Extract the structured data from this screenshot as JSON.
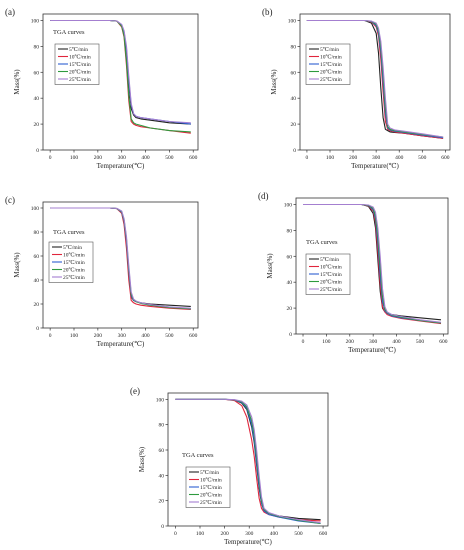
{
  "figure": {
    "panels": [
      "(a)",
      "(b)",
      "(c)",
      "(d)",
      "(e)"
    ]
  },
  "chart_data": [
    {
      "panel": "(a)",
      "type": "line",
      "legend_title": "TGA  curves",
      "legend_position": "center-left",
      "xlabel": "Temperature(℃)",
      "ylabel": "Mass(%)",
      "xlim": [
        -30,
        620
      ],
      "ylim": [
        0,
        105
      ],
      "xticks": [
        0,
        100,
        200,
        300,
        400,
        500,
        600
      ],
      "yticks": [
        0,
        20,
        40,
        60,
        80,
        100
      ],
      "x": [
        0,
        250,
        280,
        300,
        310,
        320,
        330,
        340,
        350,
        360,
        380,
        420,
        500,
        590
      ],
      "series": [
        {
          "name": "5℃/min",
          "color": "#222222",
          "values": [
            100,
            100,
            99.5,
            96,
            90,
            75,
            50,
            32,
            27,
            25,
            24,
            23,
            21,
            20
          ]
        },
        {
          "name": "10℃/min",
          "color": "#e0263c",
          "values": [
            100,
            100,
            99.5,
            95,
            87,
            65,
            38,
            22,
            20,
            19,
            18,
            17,
            15,
            13
          ]
        },
        {
          "name": "15℃/min",
          "color": "#2f5fd0",
          "values": [
            100,
            100,
            99.6,
            96.5,
            91,
            78,
            54,
            35,
            28,
            26,
            25,
            24,
            22,
            20
          ]
        },
        {
          "name": "20℃/min",
          "color": "#2e9a3e",
          "values": [
            100,
            100,
            99.5,
            95.5,
            88,
            68,
            42,
            24,
            21,
            20,
            19,
            17,
            15,
            14
          ]
        },
        {
          "name": "25℃/min",
          "color": "#a47fd0",
          "values": [
            100,
            100,
            99.6,
            97,
            92,
            80,
            57,
            36,
            28,
            26,
            25,
            24,
            22,
            21
          ]
        }
      ]
    },
    {
      "panel": "(b)",
      "type": "line",
      "legend_title": "",
      "legend_position": "center-left",
      "xlabel": "Temperature(℃)",
      "ylabel": "Mass(%)",
      "xlim": [
        -30,
        620
      ],
      "ylim": [
        0,
        105
      ],
      "xticks": [
        0,
        100,
        200,
        300,
        400,
        500,
        600
      ],
      "yticks": [
        0,
        20,
        40,
        60,
        80,
        100
      ],
      "x": [
        0,
        250,
        280,
        300,
        310,
        320,
        330,
        340,
        350,
        360,
        380,
        420,
        500,
        590
      ],
      "series": [
        {
          "name": "5℃/min",
          "color": "#222222",
          "values": [
            100,
            100,
            98,
            90,
            75,
            48,
            25,
            16,
            15,
            14,
            13.5,
            13,
            11,
            9
          ]
        },
        {
          "name": "10℃/min",
          "color": "#e0263c",
          "values": [
            100,
            100,
            99,
            95,
            88,
            70,
            45,
            22,
            16,
            15,
            14,
            13,
            11,
            9
          ]
        },
        {
          "name": "15℃/min",
          "color": "#2f5fd0",
          "values": [
            100,
            100,
            99.2,
            96,
            90,
            76,
            52,
            28,
            17,
            15.5,
            14.5,
            13.5,
            11.5,
            9.5
          ]
        },
        {
          "name": "20℃/min",
          "color": "#2e9a3e",
          "values": [
            100,
            100,
            99.4,
            97,
            92,
            80,
            58,
            33,
            18,
            16,
            15,
            14,
            12,
            10
          ]
        },
        {
          "name": "25℃/min",
          "color": "#a47fd0",
          "values": [
            100,
            100,
            99.5,
            98,
            94,
            84,
            64,
            40,
            20,
            17,
            15.5,
            14.5,
            12.5,
            10
          ]
        }
      ]
    },
    {
      "panel": "(c)",
      "type": "line",
      "legend_title": "TGA  curves",
      "legend_position": "center-left",
      "xlabel": "Temperature(℃)",
      "ylabel": "Mass(%)",
      "xlim": [
        -30,
        620
      ],
      "ylim": [
        0,
        105
      ],
      "xticks": [
        0,
        100,
        200,
        300,
        400,
        500,
        600
      ],
      "yticks": [
        0,
        20,
        40,
        60,
        80,
        100
      ],
      "x": [
        0,
        250,
        280,
        300,
        310,
        320,
        330,
        340,
        350,
        360,
        380,
        420,
        500,
        590
      ],
      "series": [
        {
          "name": "5℃/min",
          "color": "#222222",
          "values": [
            100,
            100,
            99.5,
            96,
            88,
            70,
            45,
            26,
            23,
            22,
            21,
            20,
            19,
            18
          ]
        },
        {
          "name": "10℃/min",
          "color": "#e0263c",
          "values": [
            100,
            100,
            99.5,
            95.5,
            86,
            66,
            40,
            23,
            21,
            20,
            19,
            18,
            16.5,
            15.5
          ]
        },
        {
          "name": "15℃/min",
          "color": "#2f5fd0",
          "values": [
            100,
            100,
            99.6,
            96.5,
            89,
            72,
            47,
            27,
            23,
            22,
            21,
            19,
            17.5,
            16
          ]
        },
        {
          "name": "20℃/min",
          "color": "#2e9a3e",
          "values": [
            100,
            100,
            99.6,
            97,
            90,
            74,
            49,
            28,
            23.5,
            22,
            20.5,
            19,
            17,
            16
          ]
        },
        {
          "name": "25℃/min",
          "color": "#a47fd0",
          "values": [
            100,
            100,
            99.7,
            97.5,
            91,
            76,
            52,
            30,
            24,
            22.5,
            21,
            19.5,
            17.5,
            16.5
          ]
        }
      ]
    },
    {
      "panel": "(d)",
      "type": "line",
      "legend_title": "TGA  curves",
      "legend_position": "center-left",
      "xlabel": "Temperature(℃)",
      "ylabel": "Mass(%)",
      "xlim": [
        -30,
        620
      ],
      "ylim": [
        0,
        105
      ],
      "xticks": [
        0,
        100,
        200,
        300,
        400,
        500,
        600
      ],
      "yticks": [
        0,
        20,
        40,
        60,
        80,
        100
      ],
      "x": [
        0,
        250,
        280,
        300,
        310,
        320,
        330,
        340,
        350,
        360,
        380,
        420,
        500,
        590
      ],
      "series": [
        {
          "name": "5℃/min",
          "color": "#222222",
          "values": [
            100,
            100,
            98.5,
            93,
            82,
            58,
            33,
            20,
            17,
            16,
            15,
            14,
            12.5,
            11
          ]
        },
        {
          "name": "10℃/min",
          "color": "#e0263c",
          "values": [
            100,
            100,
            99,
            95,
            86,
            64,
            38,
            21,
            17,
            15,
            13.5,
            12,
            10,
            8
          ]
        },
        {
          "name": "15℃/min",
          "color": "#2f5fd0",
          "values": [
            100,
            100,
            99.2,
            96,
            89,
            71,
            45,
            25,
            18,
            16,
            14,
            12.5,
            10.5,
            8.5
          ]
        },
        {
          "name": "20℃/min",
          "color": "#2e9a3e",
          "values": [
            100,
            100,
            99.4,
            97,
            91,
            76,
            52,
            29,
            19,
            16.5,
            14.5,
            13,
            10.5,
            8.5
          ]
        },
        {
          "name": "25℃/min",
          "color": "#a47fd0",
          "values": [
            100,
            100,
            99.6,
            98,
            94,
            82,
            60,
            35,
            21,
            17,
            15,
            13.5,
            11,
            9
          ]
        }
      ]
    },
    {
      "panel": "(e)",
      "type": "line",
      "legend_title": "TGA  curves",
      "legend_position": "center-left",
      "xlabel": "Temperature(℃)",
      "ylabel": "Mass(%)",
      "xlim": [
        -30,
        620
      ],
      "ylim": [
        0,
        105
      ],
      "xticks": [
        0,
        100,
        200,
        300,
        400,
        500,
        600
      ],
      "yticks": [
        0,
        20,
        40,
        60,
        80,
        100
      ],
      "x": [
        0,
        200,
        240,
        270,
        290,
        310,
        320,
        330,
        340,
        350,
        360,
        380,
        420,
        500,
        590
      ],
      "series": [
        {
          "name": "5℃/min",
          "color": "#222222",
          "values": [
            100,
            100,
            99.5,
            97,
            92,
            78,
            66,
            48,
            30,
            18,
            12,
            10,
            8,
            6,
            5
          ]
        },
        {
          "name": "10℃/min",
          "color": "#e0263c",
          "values": [
            100,
            100,
            99,
            95,
            86,
            68,
            55,
            38,
            22,
            14,
            11,
            9,
            7,
            5,
            4
          ]
        },
        {
          "name": "15℃/min",
          "color": "#2f5fd0",
          "values": [
            100,
            100,
            99.5,
            97.5,
            93,
            80,
            68,
            50,
            32,
            18,
            12,
            9,
            7,
            4,
            2
          ]
        },
        {
          "name": "20℃/min",
          "color": "#2e9a3e",
          "values": [
            100,
            100,
            99.6,
            98,
            94,
            83,
            72,
            55,
            36,
            20,
            13,
            10,
            7.5,
            4.5,
            2
          ]
        },
        {
          "name": "25℃/min",
          "color": "#a47fd0",
          "values": [
            100,
            100,
            99.7,
            98.5,
            95.5,
            86,
            76,
            60,
            40,
            23,
            14,
            10.5,
            8,
            5,
            2.5
          ]
        }
      ]
    }
  ]
}
